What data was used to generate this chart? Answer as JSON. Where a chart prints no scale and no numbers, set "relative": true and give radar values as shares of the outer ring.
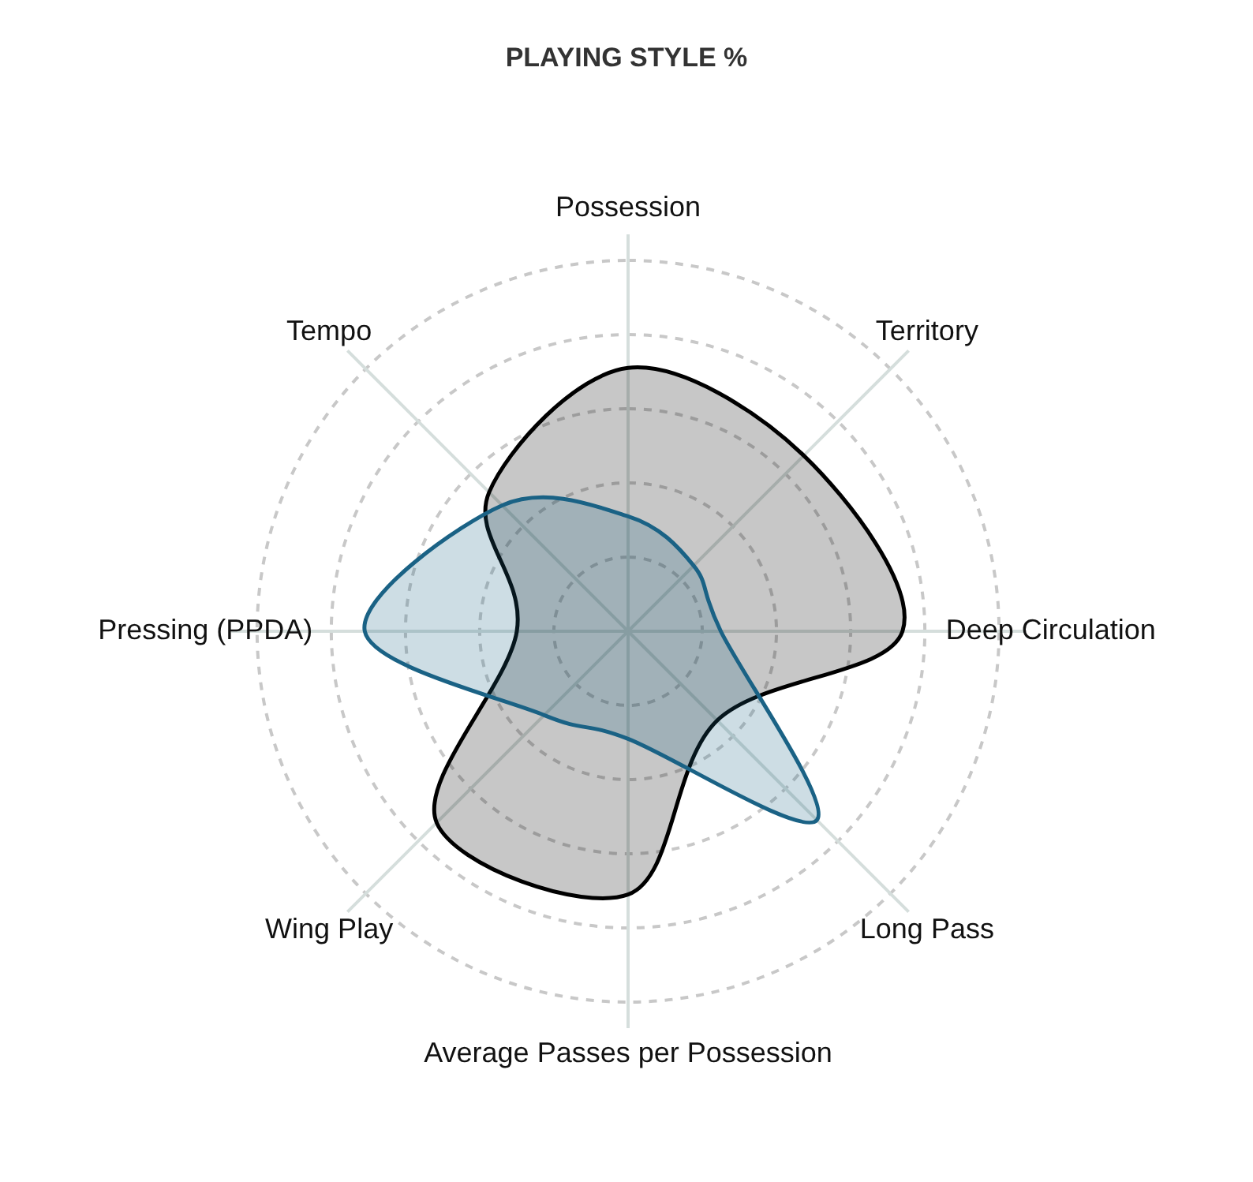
{
  "chart_data": {
    "type": "radar",
    "title": "PLAYING STYLE %",
    "relative": true,
    "grid": true,
    "categories": [
      "Possession",
      "Territory",
      "Deep Circulation",
      "Long Pass",
      "Average Passes per Possession",
      "Wing Play",
      "Pressing (PPDA)",
      "Tempo"
    ],
    "series": [
      {
        "color": "#000000",
        "values": [
          0.71,
          0.67,
          0.74,
          0.34,
          0.71,
          0.73,
          0.3,
          0.53
        ]
      },
      {
        "color": "#1a6285",
        "values": [
          0.31,
          0.25,
          0.25,
          0.72,
          0.29,
          0.32,
          0.71,
          0.48
        ]
      }
    ]
  }
}
